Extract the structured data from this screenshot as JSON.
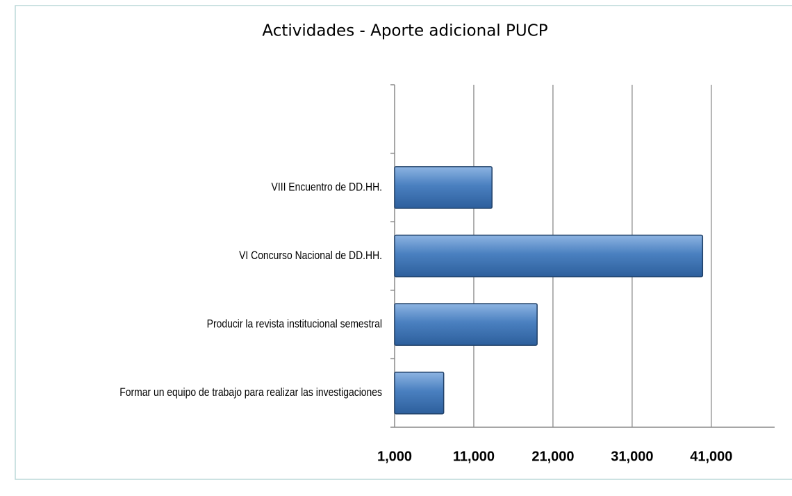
{
  "chart_data": {
    "type": "bar",
    "orientation": "horizontal",
    "title": "Actividades - Aporte adicional PUCP",
    "categories": [
      null,
      "VIII Encuentro de DD.HH.",
      "VI Concurso Nacional de DD.HH.",
      "Producir la revista institucional semestral",
      "Formar un equipo de trabajo para realizar las investigaciones"
    ],
    "values": [
      null,
      13300,
      39900,
      19000,
      7200
    ],
    "color": "#4a80c0",
    "xlim": [
      1000,
      49000
    ],
    "xticks": [
      {
        "value": 1000,
        "label": "1,000"
      },
      {
        "value": 11000,
        "label": "11,000"
      },
      {
        "value": 21000,
        "label": "21,000"
      },
      {
        "value": 31000,
        "label": "31,000"
      },
      {
        "value": 41000,
        "label": "41,000"
      }
    ],
    "grid": true
  }
}
